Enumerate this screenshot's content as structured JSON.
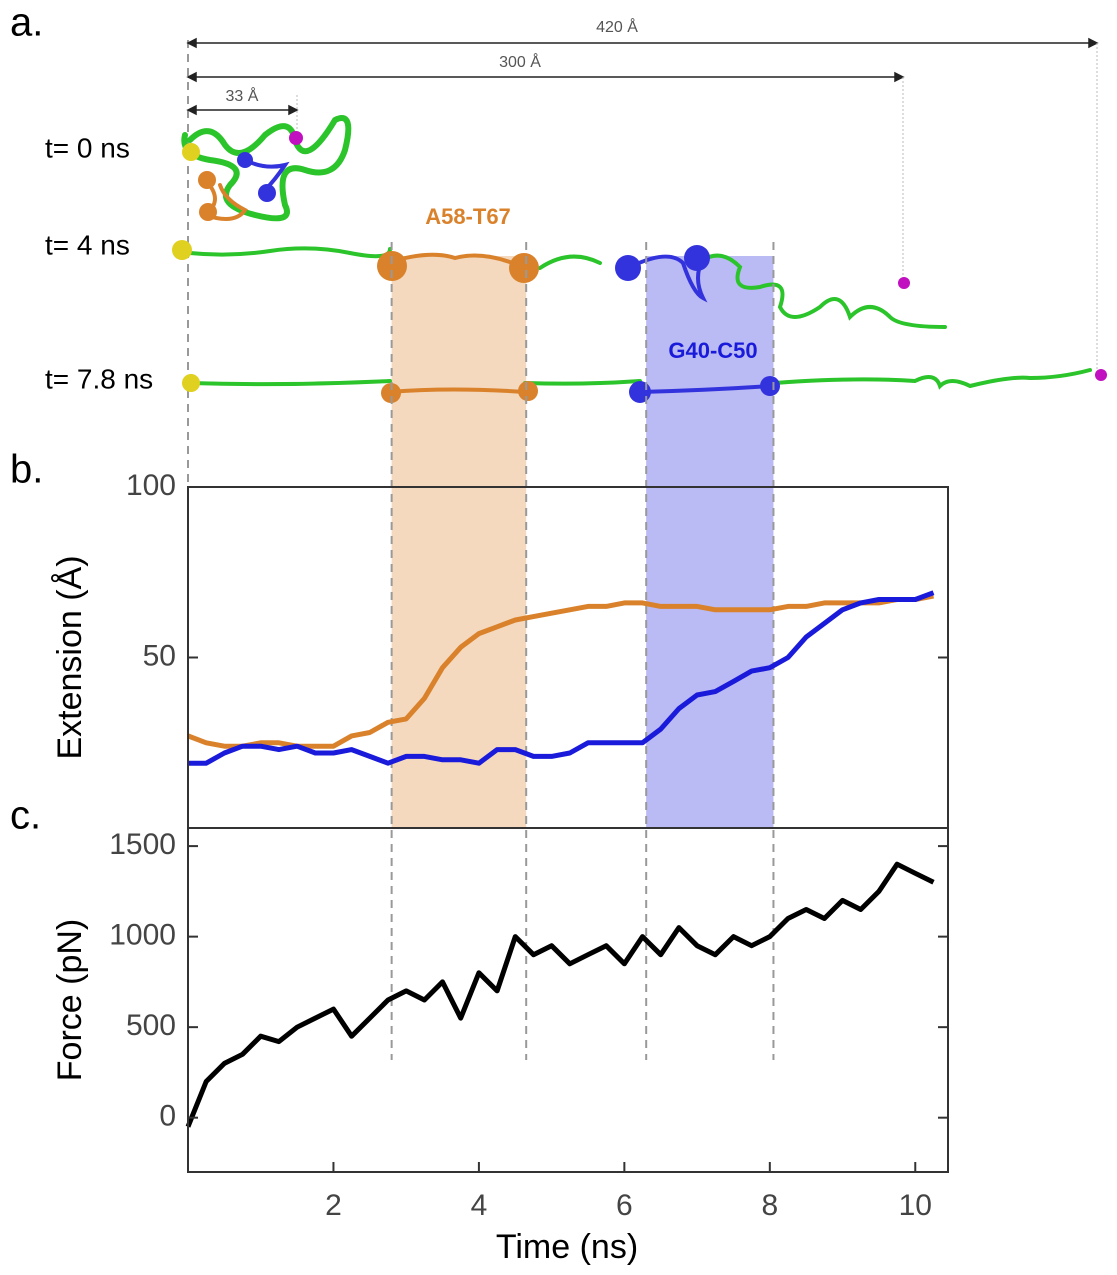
{
  "diagram": {
    "panel_label": "a.",
    "scale_labels": [
      "420 Å",
      "300 Å",
      "33 Å"
    ],
    "time_labels": [
      "t= 0 ns",
      "t= 4 ns",
      "t= 7.8 ns"
    ]
  },
  "chart_data": [
    {
      "type": "line",
      "panel_label": "b.",
      "ylabel": "Extension (Å)",
      "x": [
        0,
        0.25,
        0.5,
        0.75,
        1,
        1.25,
        1.5,
        1.75,
        2,
        2.25,
        2.5,
        2.75,
        3,
        3.25,
        3.5,
        3.75,
        4,
        4.25,
        4.5,
        4.75,
        5,
        5.25,
        5.5,
        5.75,
        6,
        6.25,
        6.5,
        6.75,
        7,
        7.25,
        7.5,
        7.75,
        8,
        8.25,
        8.5,
        8.75,
        9,
        9.25,
        9.5,
        9.75,
        10,
        10.25
      ],
      "xlim": [
        0,
        10.45
      ],
      "ylim": [
        0,
        100
      ],
      "yticks": [
        50,
        100
      ],
      "series": [
        {
          "color": "#d9822b",
          "values": [
            27,
            25,
            24,
            24,
            25,
            25,
            24,
            24,
            24,
            27,
            28,
            31,
            32,
            38,
            47,
            53,
            57,
            59,
            61,
            62,
            63,
            64,
            65,
            65,
            66,
            66,
            65,
            65,
            65,
            64,
            64,
            64,
            64,
            65,
            65,
            66,
            66,
            66,
            66,
            67,
            67,
            68
          ]
        },
        {
          "color": "#1a1adb",
          "values": [
            19,
            19,
            22,
            24,
            24,
            23,
            24,
            22,
            22,
            23,
            21,
            19,
            21,
            21,
            20,
            20,
            19,
            23,
            23,
            21,
            21,
            22,
            25,
            25,
            25,
            25,
            29,
            35,
            39,
            40,
            43,
            46,
            47,
            50,
            56,
            60,
            64,
            66,
            67,
            67,
            67,
            69
          ]
        }
      ],
      "spans": [
        {
          "name": "A58-T67",
          "color": "#d9822b",
          "x": [
            2.8,
            4.65
          ]
        },
        {
          "name": "G40-C50",
          "color": "#1a1adb",
          "x": [
            6.3,
            8.05
          ]
        }
      ]
    },
    {
      "type": "line",
      "panel_label": "c.",
      "ylabel": "Force  (pN)",
      "xlabel": "Time (ns)",
      "x": [
        0,
        0.25,
        0.5,
        0.75,
        1,
        1.25,
        1.5,
        1.75,
        2,
        2.25,
        2.5,
        2.75,
        3,
        3.25,
        3.5,
        3.75,
        4,
        4.25,
        4.5,
        4.75,
        5,
        5.25,
        5.5,
        5.75,
        6,
        6.25,
        6.5,
        6.75,
        7,
        7.25,
        7.5,
        7.75,
        8,
        8.25,
        8.5,
        8.75,
        9,
        9.25,
        9.5,
        9.75,
        10,
        10.25
      ],
      "xlim": [
        0,
        10.45
      ],
      "ylim": [
        -300,
        1600
      ],
      "yticks": [
        0,
        500,
        1000,
        1500
      ],
      "xticks": [
        2,
        4,
        6,
        8,
        10
      ],
      "series": [
        {
          "color": "#000000",
          "values": [
            -50,
            200,
            300,
            350,
            450,
            420,
            500,
            550,
            600,
            450,
            550,
            650,
            700,
            650,
            750,
            550,
            800,
            700,
            1000,
            900,
            950,
            850,
            900,
            950,
            850,
            1000,
            900,
            1050,
            950,
            900,
            1000,
            950,
            1000,
            1100,
            1150,
            1100,
            1200,
            1150,
            1250,
            1400,
            1350,
            1300
          ]
        }
      ]
    }
  ]
}
